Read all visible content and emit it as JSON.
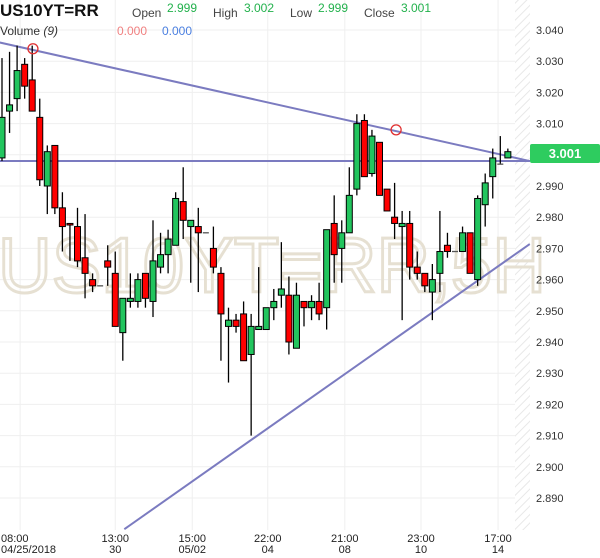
{
  "header": {
    "symbol": "US10YT=RR",
    "open_label": "Open",
    "open": "2.999",
    "high_label": "High",
    "high": "3.002",
    "low_label": "Low",
    "low": "2.999",
    "close_label": "Close",
    "close": "3.001",
    "volume_label": "Volume",
    "volume_period": "(9)",
    "volume_value_1": "0.000",
    "volume_value_2": "0.000"
  },
  "watermark": "US10YT=RR,5H",
  "last_price_label": "3.001",
  "colors": {
    "up": "#22c55e",
    "down": "#ff0000",
    "trendline": "#7b7bc0",
    "last_price": "#2ecc5f",
    "watermark": "#e9e4d8",
    "marker": "#e03030"
  },
  "chart_data": {
    "type": "candlestick",
    "ylim": [
      2.88,
      3.05
    ],
    "y_ticks": [
      "3.040",
      "3.030",
      "3.020",
      "3.010",
      "3.000",
      "2.990",
      "2.980",
      "2.970",
      "2.960",
      "2.950",
      "2.940",
      "2.930",
      "2.920",
      "2.910",
      "2.900",
      "2.890"
    ],
    "x_ticks": [
      {
        "bar": 2.4,
        "time": "08:00",
        "date": "04/25/2018"
      },
      {
        "bar": 15,
        "time": "13:00",
        "date": "30"
      },
      {
        "bar": 25.2,
        "time": "15:00",
        "date": "05/02"
      },
      {
        "bar": 35.2,
        "time": "22:00",
        "date": "04"
      },
      {
        "bar": 45.4,
        "time": "21:00",
        "date": "08"
      },
      {
        "bar": 55.5,
        "time": "23:00",
        "date": "10"
      },
      {
        "bar": 65.7,
        "time": "17:00",
        "date": "14"
      }
    ],
    "ohlc": [
      [
        2.999,
        3.031,
        2.998,
        3.012
      ],
      [
        3.014,
        3.033,
        3.007,
        3.016
      ],
      [
        3.018,
        3.035,
        3.014,
        3.027
      ],
      [
        3.029,
        3.031,
        3.018,
        3.022
      ],
      [
        3.024,
        3.035,
        3.014,
        3.014
      ],
      [
        3.012,
        3.018,
        2.99,
        2.992
      ],
      [
        2.99,
        3.003,
        2.981,
        3.001
      ],
      [
        3.003,
        3.003,
        2.981,
        2.983
      ],
      [
        2.983,
        2.988,
        2.969,
        2.977
      ],
      [
        2.978,
        2.978,
        2.966,
        2.9775
      ],
      [
        2.977,
        2.983,
        2.964,
        2.966
      ],
      [
        2.967,
        2.981,
        2.954,
        2.962
      ],
      [
        2.96,
        2.962,
        2.956,
        2.958
      ],
      [
        2.958,
        2.958,
        2.958,
        2.958
      ],
      [
        2.966,
        2.971,
        2.958,
        2.964
      ],
      [
        2.962,
        2.969,
        2.945,
        2.945
      ],
      [
        2.943,
        2.954,
        2.934,
        2.954
      ],
      [
        2.953,
        2.962,
        2.951,
        2.954
      ],
      [
        2.953,
        2.962,
        2.951,
        2.96
      ],
      [
        2.962,
        2.962,
        2.951,
        2.954
      ],
      [
        2.953,
        2.979,
        2.948,
        2.966
      ],
      [
        2.964,
        2.975,
        2.962,
        2.968
      ],
      [
        2.968,
        2.976,
        2.962,
        2.973
      ],
      [
        2.971,
        2.988,
        2.971,
        2.986
      ],
      [
        2.985,
        2.996,
        2.973,
        2.979
      ],
      [
        2.977,
        2.979,
        2.959,
        2.979
      ],
      [
        2.977,
        2.983,
        2.956,
        2.975
      ],
      [
        2.975,
        2.975,
        2.975,
        2.975
      ],
      [
        2.97,
        2.977,
        2.962,
        2.964
      ],
      [
        2.962,
        2.964,
        2.934,
        2.949
      ],
      [
        2.945,
        2.951,
        2.927,
        2.947
      ],
      [
        2.947,
        2.949,
        2.943,
        2.945
      ],
      [
        2.949,
        2.953,
        2.934,
        2.934
      ],
      [
        2.936,
        2.949,
        2.91,
        2.945
      ],
      [
        2.944,
        2.964,
        2.944,
        2.945
      ],
      [
        2.944,
        2.951,
        2.944,
        2.951
      ],
      [
        2.951,
        2.957,
        2.947,
        2.953
      ],
      [
        2.955,
        2.972,
        2.951,
        2.957
      ],
      [
        2.955,
        2.961,
        2.936,
        2.94
      ],
      [
        2.938,
        2.959,
        2.938,
        2.955
      ],
      [
        2.953,
        2.953,
        2.945,
        2.951
      ],
      [
        2.951,
        2.955,
        2.947,
        2.953
      ],
      [
        2.953,
        2.959,
        2.947,
        2.949
      ],
      [
        2.951,
        2.976,
        2.944,
        2.976
      ],
      [
        2.978,
        2.987,
        2.959,
        2.968
      ],
      [
        2.97,
        2.979,
        2.959,
        2.975
      ],
      [
        2.975,
        2.996,
        2.975,
        2.987
      ],
      [
        2.989,
        3.013,
        2.987,
        3.01
      ],
      [
        3.011,
        3.013,
        2.993,
        2.993
      ],
      [
        2.994,
        3.008,
        2.993,
        3.006
      ],
      [
        3.004,
        3.004,
        2.987,
        2.987
      ],
      [
        2.989,
        2.989,
        2.982,
        2.982
      ],
      [
        2.98,
        2.991,
        2.973,
        2.978
      ],
      [
        2.977,
        2.982,
        2.947,
        2.978
      ],
      [
        2.978,
        2.982,
        2.96,
        2.964
      ],
      [
        2.964,
        2.969,
        2.96,
        2.962
      ],
      [
        2.962,
        2.962,
        2.956,
        2.958
      ],
      [
        2.956,
        2.965,
        2.947,
        2.96
      ],
      [
        2.962,
        2.982,
        2.956,
        2.969
      ],
      [
        2.971,
        2.975,
        2.967,
        2.969
      ],
      [
        2.969,
        2.969,
        2.969,
        2.969
      ],
      [
        2.969,
        2.977,
        2.969,
        2.975
      ],
      [
        2.975,
        2.975,
        2.962,
        2.962
      ],
      [
        2.96,
        2.987,
        2.958,
        2.986
      ],
      [
        2.984,
        2.994,
        2.977,
        2.991
      ],
      [
        2.993,
        3.002,
        2.986,
        2.999
      ],
      [
        2.997,
        3.006,
        2.997,
        2.997
      ],
      [
        2.999,
        3.002,
        2.999,
        3.001
      ]
    ],
    "trendlines": [
      {
        "kind": "descending",
        "from": {
          "bar": -0.3,
          "price": 3.036
        },
        "to": {
          "bar": 69.9,
          "price": 2.998
        }
      },
      {
        "kind": "horizontal",
        "price": 2.998
      },
      {
        "kind": "ascending",
        "from": {
          "bar": 16.2,
          "price": 2.88
        },
        "to": {
          "bar": 69.9,
          "price": 2.9714
        }
      }
    ],
    "markers": [
      {
        "bar": 4.1,
        "price": 3.034
      },
      {
        "bar": 52.2,
        "price": 3.008
      }
    ]
  }
}
